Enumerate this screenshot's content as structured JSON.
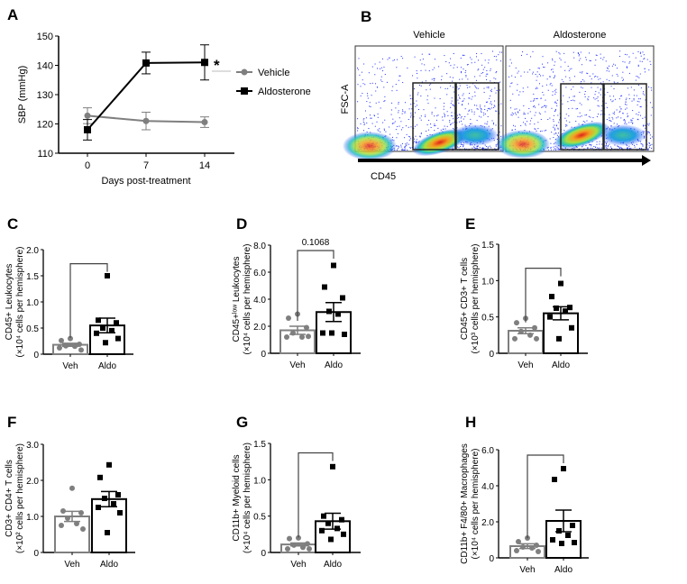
{
  "colors": {
    "vehicle": "#7f7f7f",
    "aldosterone": "#000000",
    "bracket": "#444444"
  },
  "chart_data": [
    {
      "id": "A",
      "panel_label": "A",
      "type": "line",
      "xlabel": "Days post-treatment",
      "ylabel": "SBP (mmHg)",
      "x": [
        0,
        7,
        14
      ],
      "xticks": [
        "0",
        "7",
        "14"
      ],
      "ylim": [
        110,
        150
      ],
      "yticks": [
        110,
        120,
        130,
        140,
        150
      ],
      "ytick_labels": [
        "110",
        "120",
        "130",
        "140",
        "150"
      ],
      "series": [
        {
          "name": "Vehicle",
          "marker": "circle",
          "values": [
            122.8,
            121.0,
            120.6
          ],
          "sem": [
            2.7,
            3.0,
            1.8
          ]
        },
        {
          "name": "Aldosterone",
          "marker": "square",
          "values": [
            118.0,
            140.8,
            141.0
          ],
          "sem": [
            3.5,
            3.7,
            6.0
          ]
        }
      ],
      "annotation": "*",
      "legend": "right"
    },
    {
      "id": "B",
      "panel_label": "B",
      "type": "flow-cytometry",
      "titles": [
        "Vehicle",
        "Aldosterone"
      ],
      "ylabel": "FSC-A",
      "xlabel": "CD45"
    },
    {
      "id": "C",
      "panel_label": "C",
      "type": "bar",
      "ylabel": [
        "CD45+ Leukocytes",
        "(×10⁴ cells per hemisphere)"
      ],
      "categories": [
        "Veh",
        "Aldo"
      ],
      "ylim": [
        0,
        2.0
      ],
      "yticks": [
        0,
        0.5,
        1.0,
        1.5,
        2.0
      ],
      "ytick_labels": [
        "0",
        "0.5",
        "1.0",
        "1.5",
        "2.0"
      ],
      "means": [
        0.18,
        0.55
      ],
      "sem": [
        0.03,
        0.14
      ],
      "points": [
        [
          0.3,
          0.26,
          0.19,
          0.16,
          0.15,
          0.12,
          0.08
        ],
        [
          1.5,
          0.65,
          0.6,
          0.5,
          0.45,
          0.4,
          0.3,
          0.22
        ]
      ],
      "bracket": 1.73,
      "bracket_label": ""
    },
    {
      "id": "D",
      "panel_label": "D",
      "type": "bar",
      "ylabel": [
        "CD45+ˡᵒʷ Leukocytes",
        "(×10⁴ cells per hemisphere)"
      ],
      "categories": [
        "Veh",
        "Aldo"
      ],
      "ylim": [
        0,
        8.0
      ],
      "yticks": [
        0,
        2,
        4,
        6,
        8
      ],
      "ytick_labels": [
        "0",
        "2.0",
        "4.0",
        "6.0",
        "8.0"
      ],
      "means": [
        1.7,
        3.05
      ],
      "sem": [
        0.3,
        0.7
      ],
      "points": [
        [
          2.9,
          2.6,
          1.9,
          1.5,
          1.2,
          1.2,
          1.25
        ],
        [
          6.5,
          4.9,
          4.1,
          3.1,
          2.9,
          1.5,
          1.4,
          1.5
        ]
      ],
      "bracket": 7.6,
      "bracket_label": "0.1068"
    },
    {
      "id": "E",
      "panel_label": "E",
      "type": "bar",
      "ylabel": [
        "CD45+ CD3+ T cells",
        "(×10³ cells per hemisphere)"
      ],
      "categories": [
        "Veh",
        "Aldo"
      ],
      "ylim": [
        0,
        1.5
      ],
      "yticks": [
        0,
        0.5,
        1.0,
        1.5
      ],
      "ytick_labels": [
        "0",
        "0.5",
        "1.0",
        "1.5"
      ],
      "means": [
        0.31,
        0.55
      ],
      "sem": [
        0.04,
        0.09
      ],
      "points": [
        [
          0.48,
          0.42,
          0.35,
          0.3,
          0.25,
          0.2,
          0.2
        ],
        [
          0.96,
          0.78,
          0.63,
          0.62,
          0.58,
          0.5,
          0.35,
          0.2
        ]
      ],
      "bracket": 1.17,
      "bracket_label": ""
    },
    {
      "id": "F",
      "panel_label": "F",
      "type": "bar",
      "ylabel": [
        "CD3+ CD4+ T cells",
        "(×10² cells per hemisphere)"
      ],
      "categories": [
        "Veh",
        "Aldo"
      ],
      "ylim": [
        0,
        3.0
      ],
      "yticks": [
        0,
        1,
        2,
        3
      ],
      "ytick_labels": [
        "0",
        "1.0",
        "2.0",
        "3.0"
      ],
      "means": [
        1.0,
        1.48
      ],
      "sem": [
        0.14,
        0.21
      ],
      "points": [
        [
          1.78,
          1.15,
          1.1,
          0.95,
          0.8,
          0.75,
          0.65
        ],
        [
          2.43,
          2.08,
          1.6,
          1.5,
          1.35,
          1.25,
          1.1,
          0.55
        ]
      ],
      "bracket": null,
      "bracket_label": ""
    },
    {
      "id": "G",
      "panel_label": "G",
      "type": "bar",
      "ylabel": [
        "CD11b+ Myeloid cells",
        "(×10⁴ cells per hemisphere)"
      ],
      "categories": [
        "Veh",
        "Aldo"
      ],
      "ylim": [
        0,
        1.5
      ],
      "yticks": [
        0,
        0.5,
        1.0,
        1.5
      ],
      "ytick_labels": [
        "0",
        "0.5",
        "1.0",
        "1.5"
      ],
      "means": [
        0.11,
        0.43
      ],
      "sem": [
        0.02,
        0.11
      ],
      "points": [
        [
          0.2,
          0.19,
          0.12,
          0.1,
          0.07,
          0.05,
          0.05
        ],
        [
          1.18,
          0.5,
          0.45,
          0.4,
          0.33,
          0.3,
          0.25,
          0.18
        ]
      ],
      "bracket": 1.37,
      "bracket_label": ""
    },
    {
      "id": "H",
      "panel_label": "H",
      "type": "bar",
      "ylabel": [
        "CD11b+ F4/80+ Macrophages",
        "(×10⁴ cells per hemisphere)"
      ],
      "categories": [
        "Veh",
        "Aldo"
      ],
      "ylim": [
        0,
        6.0
      ],
      "yticks": [
        0,
        2,
        4,
        6
      ],
      "ytick_labels": [
        "0",
        "2.0",
        "4.0",
        "6.0"
      ],
      "means": [
        0.65,
        2.05
      ],
      "sem": [
        0.13,
        0.6
      ],
      "points": [
        [
          1.1,
          0.9,
          0.7,
          0.6,
          0.55,
          0.4,
          0.35
        ],
        [
          4.95,
          4.35,
          1.8,
          1.5,
          1.25,
          1.0,
          0.85,
          0.8
        ]
      ],
      "bracket": 5.7,
      "bracket_label": ""
    }
  ]
}
